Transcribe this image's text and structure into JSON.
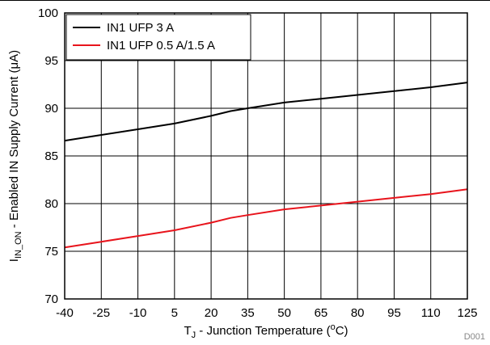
{
  "chart_data": {
    "type": "line",
    "xlabel": {
      "main": "T",
      "sub": "J",
      "rest": " - Junction Temperature (",
      "sup": "o",
      "end": "C)"
    },
    "ylabel": {
      "main": "I",
      "sub": "IN_ON",
      "rest": " - Enabled IN Supply Current (μA)"
    },
    "xlim": [
      -40,
      125
    ],
    "ylim": [
      70,
      100
    ],
    "xticks": [
      -40,
      -25,
      -10,
      5,
      20,
      35,
      50,
      65,
      80,
      95,
      110,
      125
    ],
    "yticks": [
      70,
      75,
      80,
      85,
      90,
      95,
      100
    ],
    "grid": true,
    "legend_position": "top-left",
    "series": [
      {
        "name": "IN1 UFP 3 A",
        "color": "#000000",
        "x": [
          -40,
          -25,
          -10,
          5,
          20,
          28,
          35,
          50,
          65,
          80,
          95,
          110,
          125
        ],
        "y": [
          86.6,
          87.2,
          87.8,
          88.4,
          89.2,
          89.7,
          90.0,
          90.6,
          91.0,
          91.4,
          91.8,
          92.2,
          92.7
        ]
      },
      {
        "name": "IN1 UFP 0.5 A/1.5 A",
        "color": "#e8141c",
        "x": [
          -40,
          -25,
          -10,
          5,
          20,
          28,
          35,
          50,
          65,
          80,
          95,
          110,
          125
        ],
        "y": [
          75.4,
          76.0,
          76.6,
          77.2,
          78.0,
          78.5,
          78.8,
          79.4,
          79.8,
          80.2,
          80.6,
          81.0,
          81.5
        ]
      }
    ]
  },
  "footer": {
    "id": "D001"
  }
}
